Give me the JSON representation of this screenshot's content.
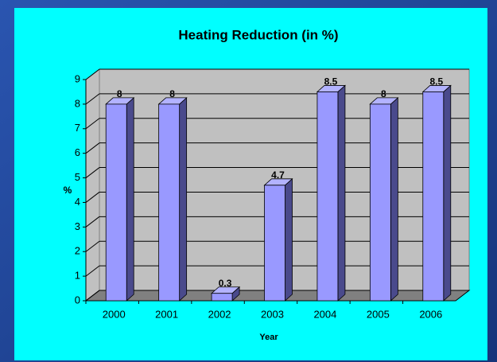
{
  "chart_data": {
    "type": "bar3d",
    "title": "Heating Reduction (in %)",
    "x_label": "Year",
    "y_label": "%",
    "categories": [
      "2000",
      "2001",
      "2002",
      "2003",
      "2004",
      "2005",
      "2006"
    ],
    "values": [
      8,
      8,
      0.3,
      4.7,
      8.5,
      8,
      8.5
    ],
    "color": "#9999ff",
    "ylim": [
      0,
      9
    ],
    "yticks": [
      0,
      1,
      2,
      3,
      4,
      5,
      6,
      7,
      8,
      9
    ],
    "grid": true
  }
}
